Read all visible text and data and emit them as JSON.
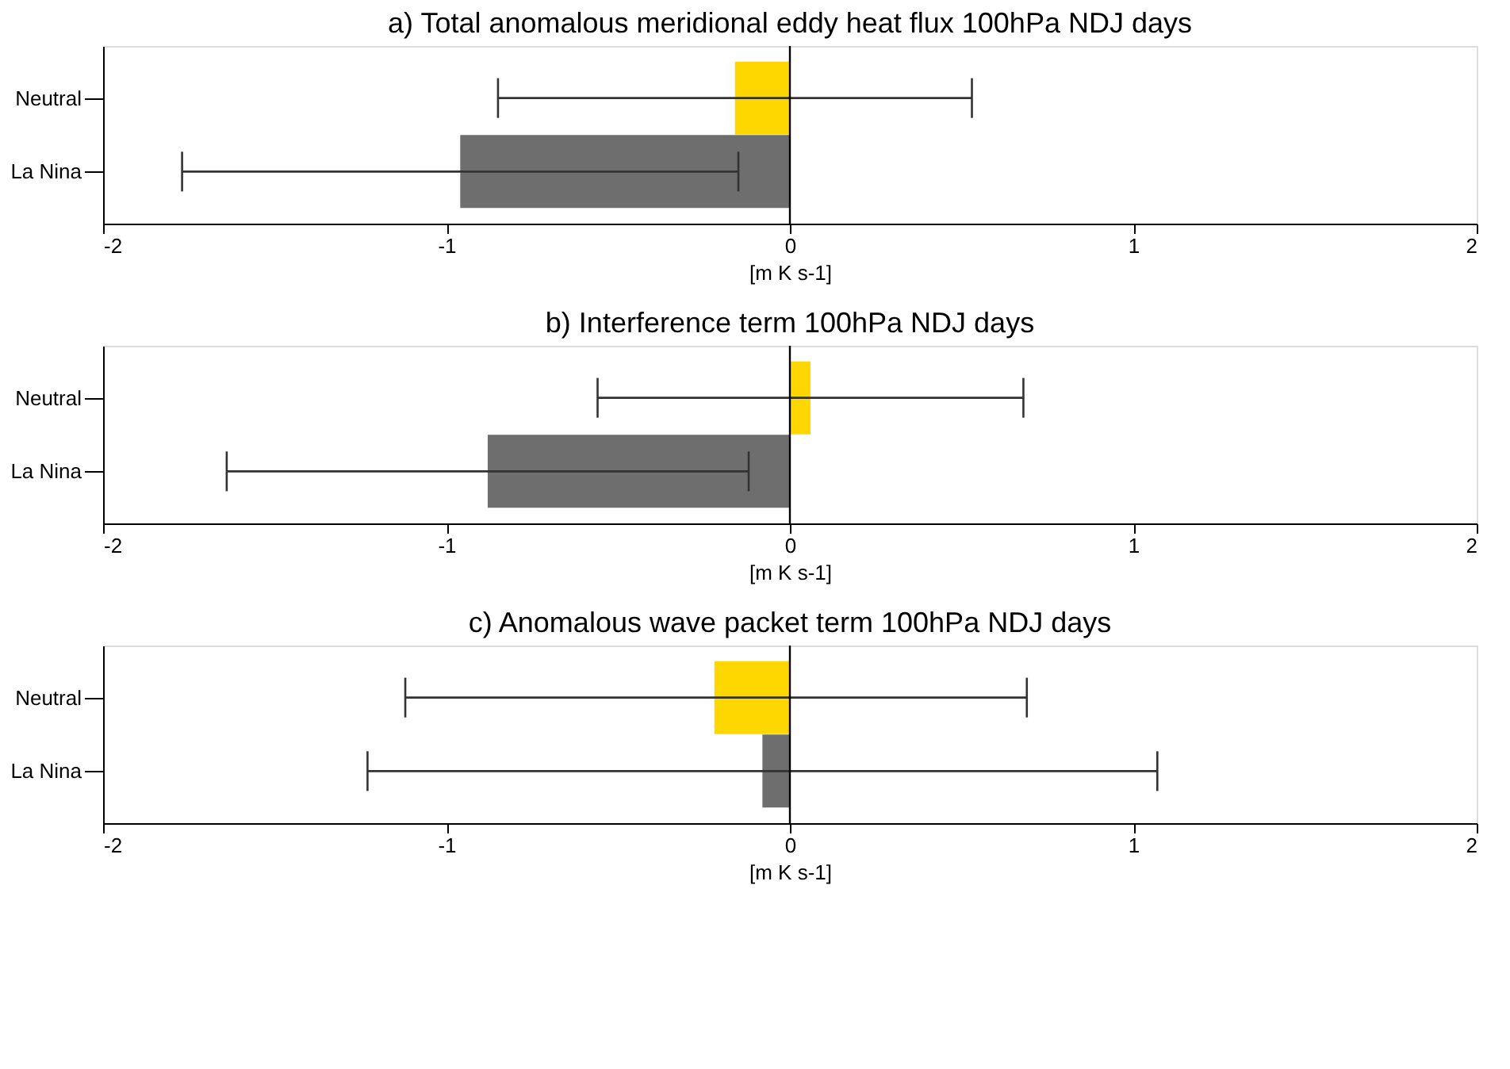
{
  "chart_data": [
    {
      "type": "bar",
      "orientation": "horizontal",
      "title": "a) Total anomalous meridional eddy heat flux  100hPa NDJ days",
      "xlabel": "[m K s-1]",
      "categories": [
        "Neutral",
        "La Nina"
      ],
      "values": [
        -0.16,
        -0.96
      ],
      "colors": [
        "#ffd700",
        "#6e6e6e"
      ],
      "errors": [
        [
          -0.85,
          0.53
        ],
        [
          -1.77,
          -0.15
        ]
      ],
      "xlim": [
        -2,
        2
      ],
      "xticks": [
        -2,
        -1,
        0,
        1,
        2
      ],
      "grid": false,
      "ref_lines": [
        {
          "axis": "x",
          "value": 0
        }
      ]
    },
    {
      "type": "bar",
      "orientation": "horizontal",
      "title": "b) Interference term 100hPa NDJ days",
      "xlabel": "[m K s-1]",
      "categories": [
        "Neutral",
        "La Nina"
      ],
      "values": [
        0.06,
        -0.88
      ],
      "colors": [
        "#ffd700",
        "#6e6e6e"
      ],
      "errors": [
        [
          -0.56,
          0.68
        ],
        [
          -1.64,
          -0.12
        ]
      ],
      "xlim": [
        -2,
        2
      ],
      "xticks": [
        -2,
        -1,
        0,
        1,
        2
      ],
      "grid": false,
      "ref_lines": [
        {
          "axis": "x",
          "value": 0
        }
      ]
    },
    {
      "type": "bar",
      "orientation": "horizontal",
      "title": "c) Anomalous wave packet term 100hPa NDJ days",
      "xlabel": "[m K s-1]",
      "categories": [
        "Neutral",
        "La Nina"
      ],
      "values": [
        -0.22,
        -0.08
      ],
      "colors": [
        "#ffd700",
        "#6e6e6e"
      ],
      "errors": [
        [
          -1.12,
          0.69
        ],
        [
          -1.23,
          1.07
        ]
      ],
      "xlim": [
        -2,
        2
      ],
      "xticks": [
        -2,
        -1,
        0,
        1,
        2
      ],
      "grid": false,
      "ref_lines": [
        {
          "axis": "x",
          "value": 0
        }
      ]
    }
  ]
}
